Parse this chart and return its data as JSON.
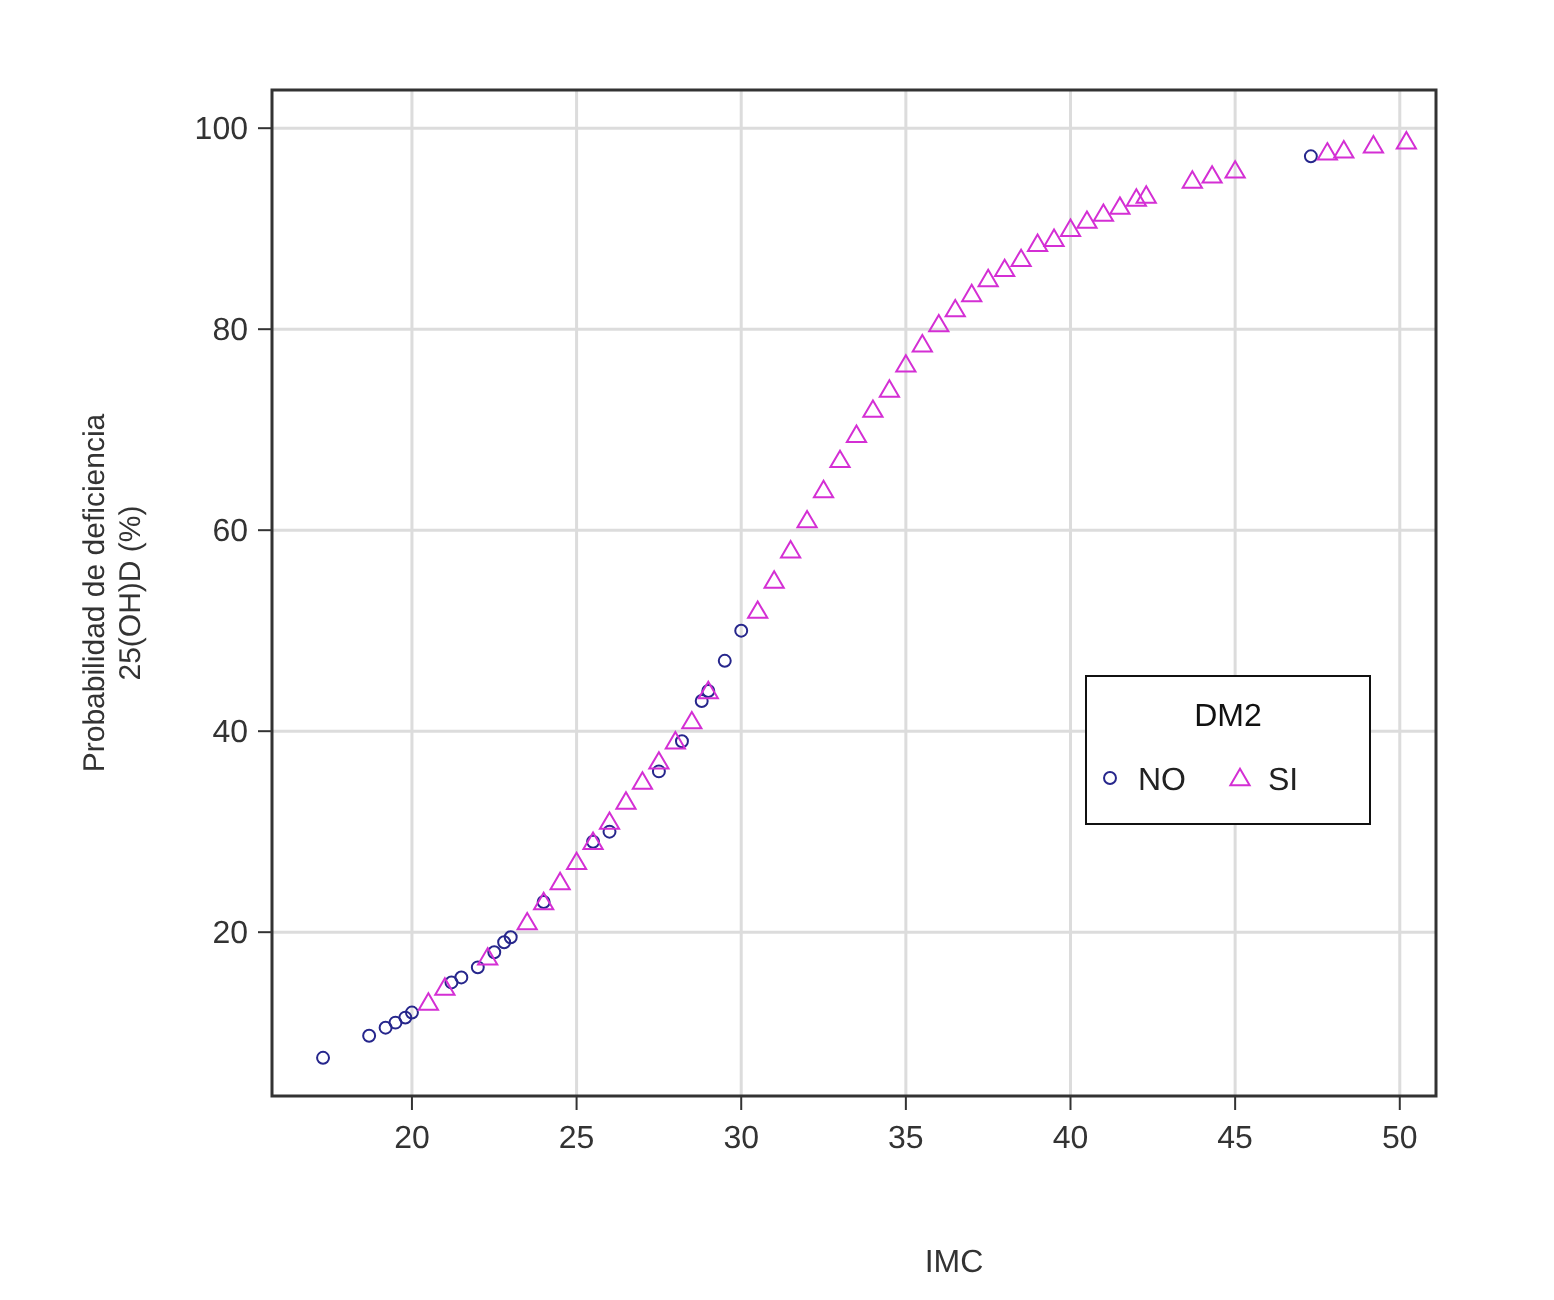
{
  "chart_data": {
    "type": "scatter",
    "xlabel": "IMC",
    "ylabel": "Probabilidad de deficiencia\n25(OH)D  (%)",
    "legend_title": "DM2",
    "legend": "right",
    "grid": true,
    "xlim": [
      15.75,
      51.1
    ],
    "ylim": [
      3.7,
      103.8
    ],
    "xticks": [
      20,
      25,
      30,
      35,
      40,
      45,
      50
    ],
    "yticks": [
      20,
      40,
      60,
      80,
      100
    ],
    "series": [
      {
        "name": "NO",
        "color": "#26268c",
        "marker": "circle",
        "x": [
          17.3,
          18.7,
          19.2,
          19.5,
          19.8,
          20.0,
          21.2,
          21.5,
          22.0,
          22.5,
          22.8,
          23.0,
          24.0,
          25.5,
          26.0,
          27.5,
          28.2,
          28.8,
          29.0,
          29.5,
          30.0,
          47.3
        ],
        "values": [
          7.5,
          9.7,
          10.5,
          11,
          11.5,
          12,
          15,
          15.5,
          16.5,
          18,
          19,
          19.5,
          23,
          29,
          30,
          36,
          39,
          43,
          44,
          47,
          50,
          97.2
        ]
      },
      {
        "name": "SI",
        "color": "#d42fd4",
        "marker": "triangle",
        "x": [
          20.5,
          21.0,
          22.3,
          23.5,
          24,
          24.5,
          25,
          25.5,
          26,
          26.5,
          27,
          27.5,
          28,
          28.5,
          29,
          30.5,
          31,
          31.5,
          32,
          32.5,
          33,
          33.5,
          34,
          34.5,
          35,
          35.5,
          36,
          36.5,
          37,
          37.5,
          38,
          38.5,
          39,
          39.5,
          40,
          40.5,
          41,
          41.5,
          42,
          42.3,
          43.7,
          44.3,
          45,
          47.8,
          48.3,
          49.2,
          50.2
        ],
        "values": [
          13,
          14.5,
          17.5,
          21,
          23,
          25,
          27,
          29,
          31,
          33,
          35,
          37,
          39,
          41,
          44,
          52,
          55,
          58,
          61,
          64,
          67,
          69.5,
          72,
          74,
          76.5,
          78.5,
          80.5,
          82,
          83.5,
          85,
          86,
          87,
          88.5,
          89,
          90,
          90.8,
          91.5,
          92.2,
          93,
          93.3,
          94.8,
          95.3,
          95.8,
          97.6,
          97.8,
          98.3,
          98.7
        ]
      }
    ]
  }
}
